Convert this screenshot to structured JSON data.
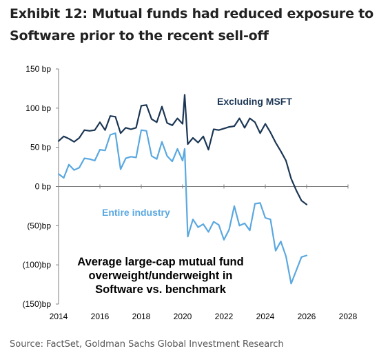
{
  "header": {
    "title_line1": "Exhibit 12: Mutual funds had reduced exposure to",
    "title_line2": "Software prior to the recent sell-off"
  },
  "footer": {
    "source": "Source: FactSet, Goldman Sachs Global Investment Research"
  },
  "chart_data": {
    "type": "line",
    "title": "Exhibit 12: Mutual funds had reduced exposure to Software prior to the recent sell-off",
    "xlabel": "",
    "ylabel": "",
    "xlim": [
      2014,
      2028
    ],
    "ylim": [
      -150,
      150
    ],
    "x_ticks": [
      "2014",
      "2016",
      "2018",
      "2020",
      "2022",
      "2024",
      "2026",
      "2028"
    ],
    "x_tick_values": [
      2014,
      2016,
      2018,
      2020,
      2022,
      2024,
      2026,
      2028
    ],
    "y_ticks": [
      "150 bp",
      "100 bp",
      "50 bp",
      "0 bp",
      "(50)bp",
      "(100)bp",
      "(150)bp"
    ],
    "y_tick_values": [
      150,
      100,
      50,
      0,
      -50,
      -100,
      -150
    ],
    "grid": false,
    "annotation": {
      "line1": "Average large-cap mutual fund",
      "line2": "overweight/underweight in",
      "line3": "Software vs. benchmark"
    },
    "series": [
      {
        "name": "Excluding MSFT",
        "color": "#1b3654",
        "x": [
          2014.0,
          2014.25,
          2014.5,
          2014.75,
          2015.0,
          2015.25,
          2015.5,
          2015.75,
          2016.0,
          2016.25,
          2016.5,
          2016.75,
          2017.0,
          2017.25,
          2017.5,
          2017.75,
          2018.0,
          2018.25,
          2018.5,
          2018.75,
          2019.0,
          2019.25,
          2019.5,
          2019.75,
          2020.0,
          2020.1,
          2020.25,
          2020.5,
          2020.75,
          2021.0,
          2021.25,
          2021.5,
          2021.75,
          2022.0,
          2022.25,
          2022.5,
          2022.75,
          2023.0,
          2023.25,
          2023.5,
          2023.75,
          2024.0,
          2024.25,
          2024.5,
          2024.75,
          2025.0,
          2025.25,
          2025.5,
          2025.75,
          2026.0
        ],
        "values": [
          58,
          64,
          61,
          57,
          62,
          72,
          71,
          72,
          82,
          72,
          90,
          89,
          68,
          75,
          73,
          75,
          103,
          104,
          86,
          82,
          102,
          81,
          78,
          87,
          80,
          117,
          54,
          62,
          56,
          64,
          47,
          73,
          72,
          74,
          76,
          77,
          87,
          75,
          87,
          82,
          68,
          80,
          69,
          56,
          45,
          33,
          10,
          -5,
          -18,
          -23
        ]
      },
      {
        "name": "Entire industry",
        "color": "#5aa8e0",
        "x": [
          2014.0,
          2014.25,
          2014.5,
          2014.75,
          2015.0,
          2015.25,
          2015.5,
          2015.75,
          2016.0,
          2016.25,
          2016.5,
          2016.75,
          2017.0,
          2017.25,
          2017.5,
          2017.75,
          2018.0,
          2018.25,
          2018.5,
          2018.75,
          2019.0,
          2019.25,
          2019.5,
          2019.75,
          2020.0,
          2020.1,
          2020.25,
          2020.5,
          2020.75,
          2021.0,
          2021.25,
          2021.5,
          2021.75,
          2022.0,
          2022.25,
          2022.5,
          2022.75,
          2023.0,
          2023.25,
          2023.5,
          2023.75,
          2024.0,
          2024.25,
          2024.5,
          2024.75,
          2025.0,
          2025.25,
          2025.5,
          2025.75,
          2026.0
        ],
        "values": [
          16,
          11,
          28,
          21,
          24,
          36,
          35,
          33,
          47,
          46,
          66,
          68,
          22,
          36,
          38,
          37,
          72,
          71,
          39,
          35,
          57,
          39,
          32,
          48,
          33,
          48,
          -64,
          -42,
          -52,
          -48,
          -58,
          -45,
          -49,
          -68,
          -55,
          -25,
          -50,
          -47,
          -56,
          -22,
          -21,
          -40,
          -42,
          -82,
          -70,
          -89,
          -124,
          -107,
          -90,
          -88
        ]
      }
    ]
  }
}
